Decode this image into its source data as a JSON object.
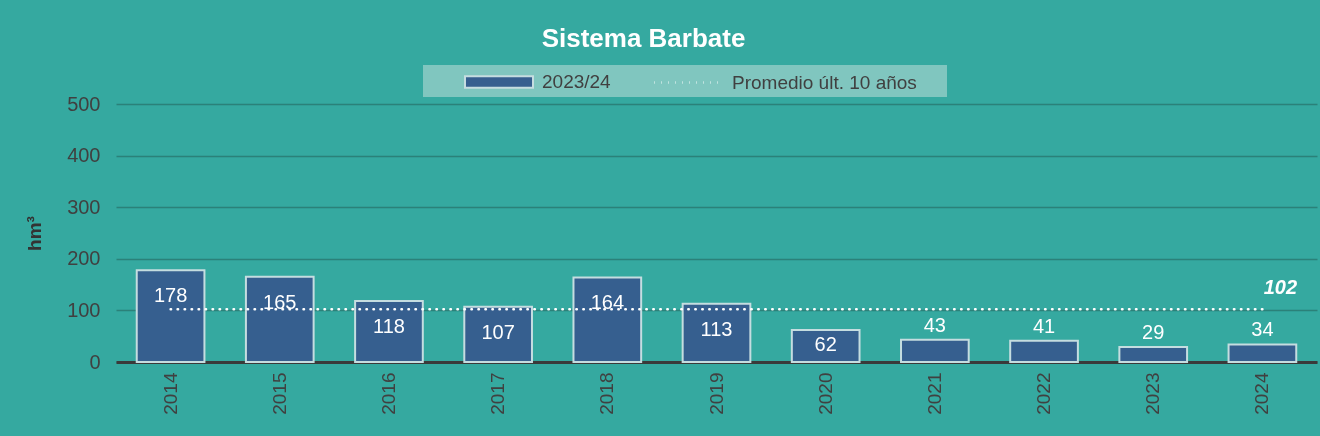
{
  "chart_data": {
    "type": "bar",
    "title": "Sistema Barbate",
    "ylabel": "hm³",
    "categories": [
      "2014",
      "2015",
      "2016",
      "2017",
      "2018",
      "2019",
      "2020",
      "2021",
      "2022",
      "2023",
      "2024"
    ],
    "series": [
      {
        "name": "2023/24",
        "color": "#365f8f",
        "values": [
          178,
          165,
          118,
          107,
          164,
          113,
          62,
          43,
          41,
          29,
          34
        ],
        "value_labels": [
          "178",
          "165",
          "118",
          "107",
          "164",
          "113",
          "62",
          "43",
          "41",
          "29",
          "34"
        ]
      },
      {
        "name": "Promedio últ. 10 años",
        "type": "line",
        "color": "#ffffff",
        "values": [
          102,
          102,
          102,
          102,
          102,
          102,
          102,
          102,
          102,
          102,
          102
        ],
        "value_labels": [
          null,
          null,
          null,
          null,
          null,
          null,
          null,
          null,
          null,
          null,
          "102"
        ]
      }
    ],
    "ylim": [
      0,
      500
    ],
    "yticks": [
      0,
      100,
      200,
      300,
      400,
      500
    ],
    "grid": "y",
    "legend": "top",
    "line_style": "dotted"
  }
}
